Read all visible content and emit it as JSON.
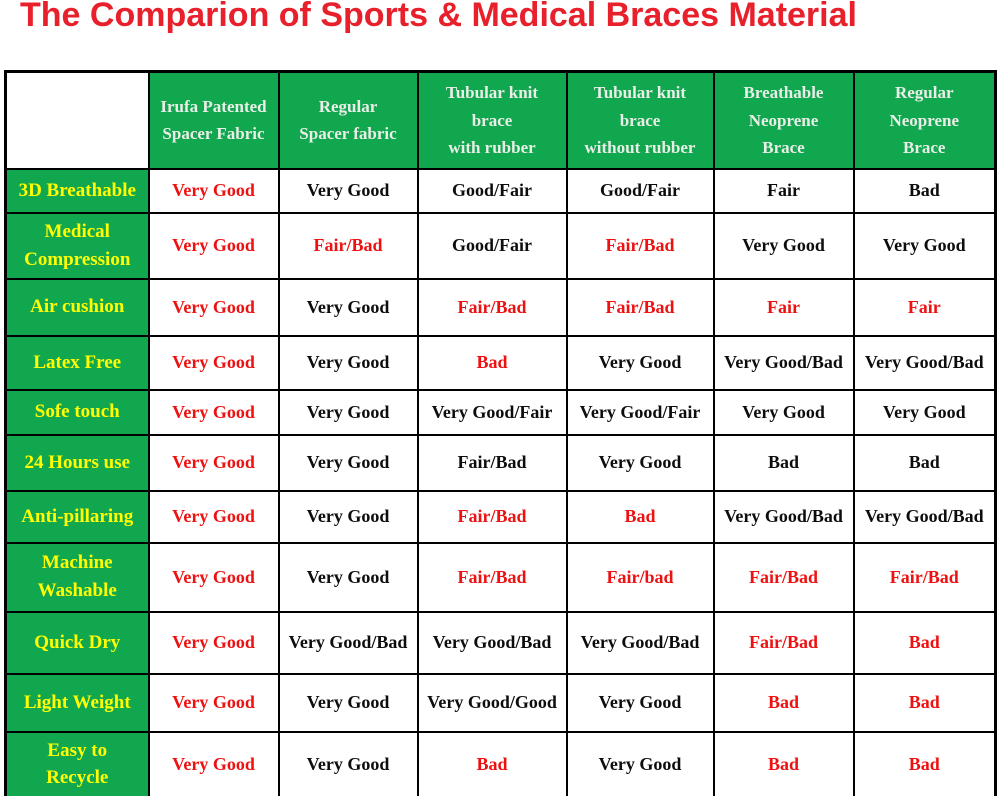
{
  "title": "The Comparion of Sports & Medical Braces Material",
  "colors": {
    "title_red": "#e8202c",
    "cell_red": "#ed1111",
    "cell_black": "#0d0d0d",
    "header_green": "#11a74f",
    "row_label_yellow": "#ffff00",
    "header_text": "#e9efe7"
  },
  "chart_data": {
    "type": "table",
    "title": "The Comparion of Sports & Medical Braces Material",
    "columns": [
      "",
      "Irufa Patented\nSpacer Fabric",
      "Regular\nSpacer fabric",
      "Tubular knit\nbrace\nwith rubber",
      "Tubular knit\nbrace\nwithout rubber",
      "Breathable\nNeoprene\nBrace",
      "Regular\nNeoprene\nBrace"
    ],
    "rows": [
      {
        "label": "3D Breathable",
        "cells": [
          {
            "text": "Very Good",
            "color": "red"
          },
          {
            "text": "Very Good",
            "color": "black"
          },
          {
            "text": "Good/Fair",
            "color": "black"
          },
          {
            "text": "Good/Fair",
            "color": "black"
          },
          {
            "text": "Fair",
            "color": "black"
          },
          {
            "text": "Bad",
            "color": "black"
          }
        ]
      },
      {
        "label": "Medical\nCompression",
        "cells": [
          {
            "text": "Very Good",
            "color": "red"
          },
          {
            "text": "Fair/Bad",
            "color": "red"
          },
          {
            "text": "Good/Fair",
            "color": "black"
          },
          {
            "text": "Fair/Bad",
            "color": "red"
          },
          {
            "text": "Very Good",
            "color": "black"
          },
          {
            "text": "Very Good",
            "color": "black"
          }
        ]
      },
      {
        "label": "Air cushion",
        "cells": [
          {
            "text": "Very Good",
            "color": "red"
          },
          {
            "text": "Very Good",
            "color": "black"
          },
          {
            "text": "Fair/Bad",
            "color": "red"
          },
          {
            "text": "Fair/Bad",
            "color": "red"
          },
          {
            "text": "Fair",
            "color": "red"
          },
          {
            "text": "Fair",
            "color": "red"
          }
        ]
      },
      {
        "label": "Latex Free",
        "cells": [
          {
            "text": "Very Good",
            "color": "red"
          },
          {
            "text": "Very Good",
            "color": "black"
          },
          {
            "text": "Bad",
            "color": "red"
          },
          {
            "text": "Very Good",
            "color": "black"
          },
          {
            "text": "Very Good/Bad",
            "color": "black"
          },
          {
            "text": "Very Good/Bad",
            "color": "black"
          }
        ]
      },
      {
        "label": "Sofe touch",
        "cells": [
          {
            "text": "Very Good",
            "color": "red"
          },
          {
            "text": "Very Good",
            "color": "black"
          },
          {
            "text": "Very Good/Fair",
            "color": "black"
          },
          {
            "text": "Very Good/Fair",
            "color": "black"
          },
          {
            "text": "Very Good",
            "color": "black"
          },
          {
            "text": "Very Good",
            "color": "black"
          }
        ]
      },
      {
        "label": "24 Hours use",
        "cells": [
          {
            "text": "Very Good",
            "color": "red"
          },
          {
            "text": "Very Good",
            "color": "black"
          },
          {
            "text": "Fair/Bad",
            "color": "black"
          },
          {
            "text": "Very Good",
            "color": "black"
          },
          {
            "text": "Bad",
            "color": "black"
          },
          {
            "text": "Bad",
            "color": "black"
          }
        ]
      },
      {
        "label": "Anti-pillaring",
        "cells": [
          {
            "text": "Very Good",
            "color": "red"
          },
          {
            "text": "Very Good",
            "color": "black"
          },
          {
            "text": "Fair/Bad",
            "color": "red"
          },
          {
            "text": "Bad",
            "color": "red"
          },
          {
            "text": "Very Good/Bad",
            "color": "black"
          },
          {
            "text": "Very Good/Bad",
            "color": "black"
          }
        ]
      },
      {
        "label": "Machine\nWashable",
        "cells": [
          {
            "text": "Very Good",
            "color": "red"
          },
          {
            "text": "Very Good",
            "color": "black"
          },
          {
            "text": "Fair/Bad",
            "color": "red"
          },
          {
            "text": "Fair/bad",
            "color": "red"
          },
          {
            "text": "Fair/Bad",
            "color": "red"
          },
          {
            "text": "Fair/Bad",
            "color": "red"
          }
        ]
      },
      {
        "label": "Quick Dry",
        "cells": [
          {
            "text": "Very Good",
            "color": "red"
          },
          {
            "text": "Very Good/Bad",
            "color": "black"
          },
          {
            "text": "Very Good/Bad",
            "color": "black"
          },
          {
            "text": "Very Good/Bad",
            "color": "black"
          },
          {
            "text": "Fair/Bad",
            "color": "red"
          },
          {
            "text": "Bad",
            "color": "red"
          }
        ]
      },
      {
        "label": "Light Weight",
        "cells": [
          {
            "text": "Very Good",
            "color": "red"
          },
          {
            "text": "Very Good",
            "color": "black"
          },
          {
            "text": "Very Good/Good",
            "color": "black"
          },
          {
            "text": "Very Good",
            "color": "black"
          },
          {
            "text": "Bad",
            "color": "red"
          },
          {
            "text": "Bad",
            "color": "red"
          }
        ]
      },
      {
        "label": "Easy to\nRecycle",
        "cells": [
          {
            "text": "Very Good",
            "color": "red"
          },
          {
            "text": "Very Good",
            "color": "black"
          },
          {
            "text": "Bad",
            "color": "red"
          },
          {
            "text": "Very Good",
            "color": "black"
          },
          {
            "text": "Bad",
            "color": "red"
          },
          {
            "text": "Bad",
            "color": "red"
          }
        ]
      }
    ]
  }
}
